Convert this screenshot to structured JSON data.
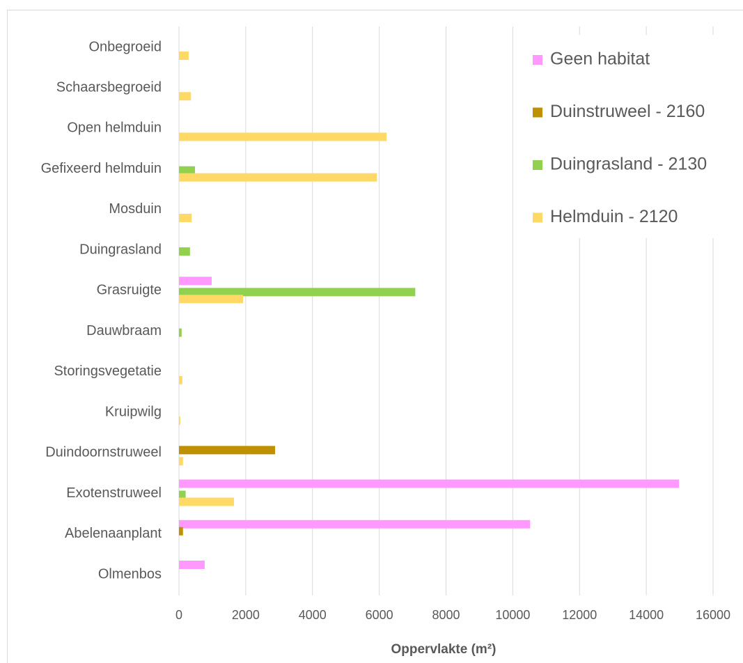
{
  "chart_data": {
    "type": "bar",
    "orientation": "horizontal",
    "xlabel": "Oppervlakte (m²)",
    "categories": [
      "Onbegroeid",
      "Schaarsbegroeid",
      "Open helmduin",
      "Gefixeerd helmduin",
      "Mosduin",
      "Duingrasland",
      "Grasruigte",
      "Dauwbraam",
      "Storingsvegetatie",
      "Kruipwilg",
      "Duindoornstruweel",
      "Exotenstruweel",
      "Abelenaanplant",
      "Olmenbos"
    ],
    "series": [
      {
        "name": "Geen habitat",
        "color": "#ff99ff",
        "values": [
          null,
          null,
          null,
          null,
          null,
          null,
          980,
          null,
          null,
          null,
          null,
          14980,
          10520,
          770
        ]
      },
      {
        "name": "Duinstruweel - 2160",
        "color": "#bf9000",
        "values": [
          null,
          null,
          null,
          null,
          null,
          null,
          null,
          null,
          null,
          null,
          2880,
          null,
          120,
          null
        ]
      },
      {
        "name": "Duingrasland - 2130",
        "color": "#92d050",
        "values": [
          null,
          null,
          null,
          480,
          null,
          330,
          7080,
          80,
          null,
          null,
          null,
          200,
          null,
          null
        ]
      },
      {
        "name": "Helmduin - 2120",
        "color": "#ffd966",
        "values": [
          290,
          360,
          6220,
          5930,
          380,
          null,
          1920,
          null,
          100,
          40,
          120,
          1650,
          null,
          null
        ]
      }
    ],
    "xlim": [
      0,
      16000
    ],
    "xticks": [
      0,
      2000,
      4000,
      6000,
      8000,
      10000,
      12000,
      14000,
      16000
    ],
    "grid": true,
    "legend": "upper right"
  }
}
